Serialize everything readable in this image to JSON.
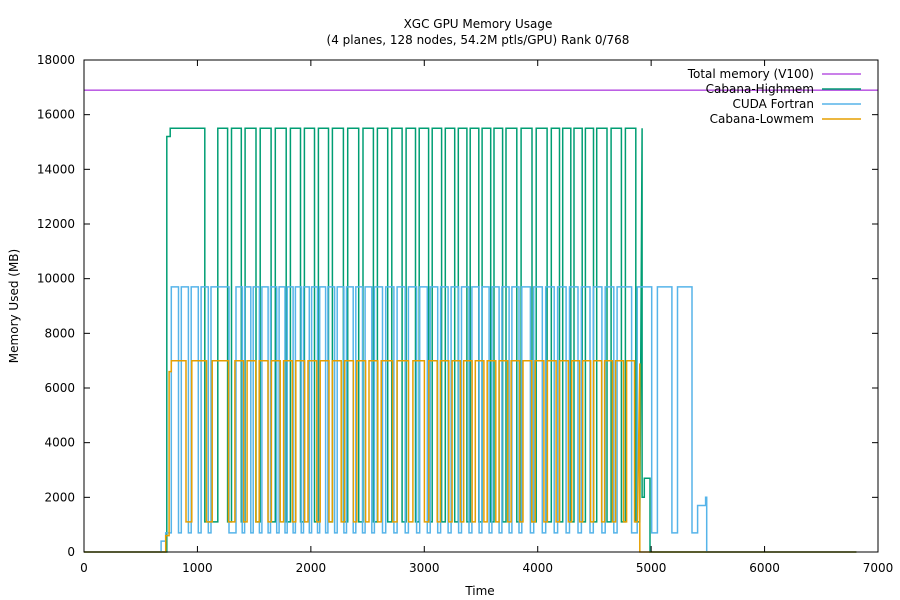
{
  "chart_data": {
    "type": "line",
    "title": "XGC GPU Memory Usage",
    "subtitle": "(4 planes, 128 nodes, 54.2M ptls/GPU) Rank 0/768",
    "xlabel": "Time",
    "ylabel": "Memory Used (MB)",
    "xlim": [
      0,
      7000
    ],
    "ylim": [
      0,
      18000
    ],
    "xticks": [
      0,
      1000,
      2000,
      3000,
      4000,
      5000,
      6000,
      7000
    ],
    "yticks": [
      0,
      2000,
      4000,
      6000,
      8000,
      10000,
      12000,
      14000,
      16000,
      18000
    ],
    "legend_position": "top-right",
    "grid": false,
    "series": [
      {
        "name": "Total memory (V100)",
        "color": "#9400d3",
        "kind": "hline",
        "value": 16900,
        "x": [
          0,
          7000
        ]
      },
      {
        "name": "Cabana-Highmem",
        "color": "#009e73",
        "kind": "step",
        "x": [
          0,
          730,
          730,
          760,
          760,
          1180,
          1180,
          4920,
          4920,
          4940,
          4940,
          4990,
          4990,
          6810
        ],
        "y": [
          0,
          0,
          15200,
          15200,
          15500,
          15500,
          15500,
          15500,
          2000,
          2000,
          2700,
          2700,
          0,
          0
        ],
        "pulses": {
          "high": 15500,
          "low": 1100,
          "segments": [
            [
              770,
              1180,
              1
            ],
            [
              1180,
              1420,
              2
            ],
            [
              1420,
              1820,
              3
            ],
            [
              1820,
              2190,
              3
            ],
            [
              2190,
              2460,
              2
            ],
            [
              2460,
              2840,
              3
            ],
            [
              2840,
              3300,
              4
            ],
            [
              3300,
              3720,
              4
            ],
            [
              3720,
              4120,
              3
            ],
            [
              4120,
              4520,
              4
            ],
            [
              4520,
              4900,
              3
            ]
          ]
        }
      },
      {
        "name": "CUDA Fortran",
        "color": "#56b4e9",
        "kind": "step",
        "x": [
          0,
          680,
          680,
          720,
          720,
          770,
          770,
          5410,
          5410,
          5480,
          5480,
          5490,
          5490,
          6810
        ],
        "y": [
          0,
          0,
          400,
          400,
          700,
          700,
          700,
          700,
          1700,
          1700,
          2000,
          2000,
          0,
          0
        ],
        "pulses": {
          "high": 9700,
          "low": 700,
          "segments": [
            [
              770,
              1120,
              4
            ],
            [
              1120,
              1340,
              1
            ],
            [
              1340,
              1720,
              5
            ],
            [
              1720,
              2150,
              6
            ],
            [
              2150,
              2560,
              5
            ],
            [
              2560,
              2960,
              4
            ],
            [
              2960,
              3420,
              5
            ],
            [
              3420,
              3860,
              5
            ],
            [
              3860,
              4280,
              4
            ],
            [
              4280,
              4700,
              4
            ],
            [
              4700,
              5410,
              4
            ]
          ]
        }
      },
      {
        "name": "Cabana-Lowmem",
        "color": "#e69f00",
        "kind": "step",
        "x": [
          0,
          720,
          720,
          750,
          750,
          770,
          770,
          4900,
          4900,
          4930,
          4930,
          6810
        ],
        "y": [
          0,
          0,
          600,
          600,
          6600,
          6600,
          6900,
          6900,
          0,
          0,
          0,
          0
        ],
        "pulses": {
          "high": 7000,
          "low": 1100,
          "segments": [
            [
              770,
              1130,
              2
            ],
            [
              1130,
              1330,
              1
            ],
            [
              1330,
              1760,
              4
            ],
            [
              1760,
              2190,
              4
            ],
            [
              2190,
              2620,
              4
            ],
            [
              2620,
              3040,
              3
            ],
            [
              3040,
              3450,
              4
            ],
            [
              3450,
              3870,
              4
            ],
            [
              3870,
              4300,
              4
            ],
            [
              4300,
              4880,
              6
            ]
          ]
        }
      }
    ]
  }
}
